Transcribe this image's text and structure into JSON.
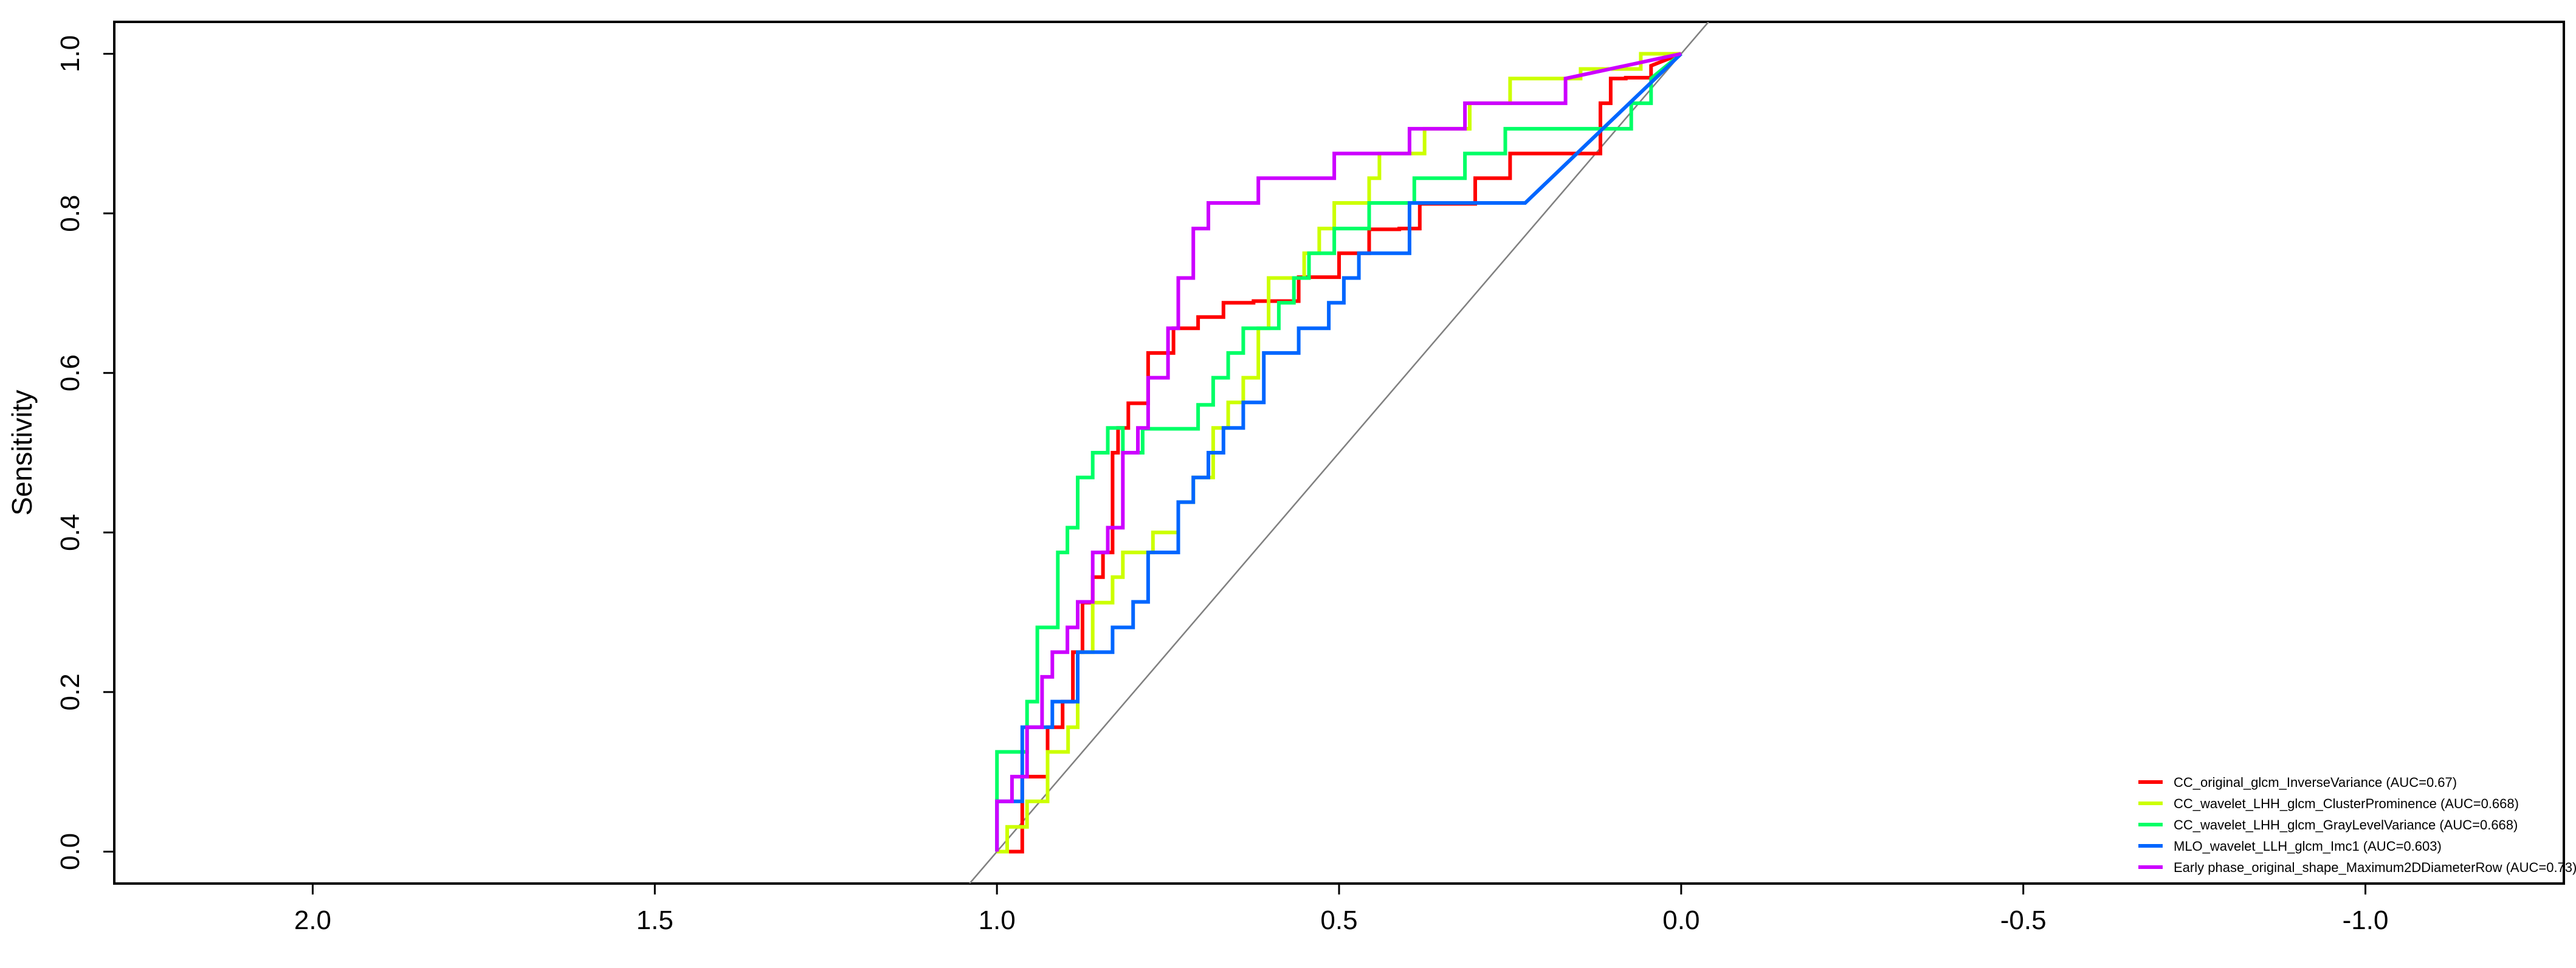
{
  "chart_data": {
    "type": "line",
    "title": "",
    "xlabel": "",
    "ylabel": "Sensitivity",
    "xlim": [
      2.29,
      -1.29
    ],
    "ylim": [
      -0.04,
      1.04
    ],
    "x_reversed": true,
    "x_ticks": [
      2.0,
      1.5,
      1.0,
      0.5,
      0.0,
      -0.5,
      -1.0
    ],
    "x_tick_labels": [
      "2.0",
      "1.5",
      "1.0",
      "0.5",
      "0.0",
      "-0.5",
      "-1.0"
    ],
    "y_ticks": [
      0.0,
      0.2,
      0.4,
      0.6,
      0.8,
      1.0
    ],
    "y_tick_labels": [
      "0.0",
      "0.2",
      "0.4",
      "0.6",
      "0.8",
      "1.0"
    ],
    "grid": false,
    "legend_position": "bottom-right",
    "reference_line": {
      "from": [
        1,
        0
      ],
      "to": [
        0,
        1
      ],
      "color": "#808080"
    },
    "series": [
      {
        "name": "CC_original_glcm_InverseVariance (AUC=0.67)",
        "color": "#ff0000",
        "x": [
          1.0,
          0.963,
          0.963,
          0.926,
          0.926,
          0.904,
          0.904,
          0.889,
          0.889,
          0.875,
          0.875,
          0.86,
          0.86,
          0.845,
          0.845,
          0.831,
          0.831,
          0.823,
          0.823,
          0.808,
          0.808,
          0.779,
          0.779,
          0.742,
          0.742,
          0.706,
          0.706,
          0.669,
          0.669,
          0.625,
          0.625,
          0.559,
          0.559,
          0.5,
          0.5,
          0.456,
          0.456,
          0.412,
          0.412,
          0.382,
          0.382,
          0.301,
          0.301,
          0.25,
          0.25,
          0.118,
          0.118,
          0.103,
          0.103,
          0.081,
          0.081,
          0.044,
          0.044,
          0.0
        ],
        "y": [
          0.0,
          0.0,
          0.094,
          0.094,
          0.156,
          0.156,
          0.188,
          0.188,
          0.25,
          0.25,
          0.312,
          0.312,
          0.344,
          0.344,
          0.375,
          0.375,
          0.5,
          0.5,
          0.531,
          0.531,
          0.562,
          0.562,
          0.625,
          0.625,
          0.656,
          0.656,
          0.67,
          0.67,
          0.688,
          0.688,
          0.69,
          0.69,
          0.72,
          0.72,
          0.75,
          0.75,
          0.78,
          0.78,
          0.781,
          0.781,
          0.812,
          0.812,
          0.844,
          0.844,
          0.875,
          0.875,
          0.938,
          0.938,
          0.969,
          0.969,
          0.97,
          0.97,
          0.985,
          1.0
        ]
      },
      {
        "name": "CC_wavelet_LHH_glcm_ClusterProminence (AUC=0.668)",
        "color": "#ccff00",
        "x": [
          1.0,
          0.985,
          0.985,
          0.956,
          0.956,
          0.926,
          0.926,
          0.896,
          0.896,
          0.882,
          0.882,
          0.86,
          0.86,
          0.831,
          0.831,
          0.816,
          0.816,
          0.772,
          0.772,
          0.735,
          0.735,
          0.713,
          0.713,
          0.684,
          0.684,
          0.662,
          0.662,
          0.64,
          0.64,
          0.618,
          0.618,
          0.603,
          0.603,
          0.551,
          0.551,
          0.529,
          0.529,
          0.507,
          0.507,
          0.456,
          0.456,
          0.441,
          0.441,
          0.375,
          0.375,
          0.309,
          0.309,
          0.25,
          0.25,
          0.147,
          0.147,
          0.059,
          0.059,
          0.0
        ],
        "y": [
          0.0,
          0.0,
          0.031,
          0.031,
          0.063,
          0.063,
          0.125,
          0.125,
          0.156,
          0.156,
          0.25,
          0.25,
          0.312,
          0.312,
          0.344,
          0.344,
          0.375,
          0.375,
          0.4,
          0.4,
          0.438,
          0.438,
          0.469,
          0.469,
          0.531,
          0.531,
          0.563,
          0.563,
          0.594,
          0.594,
          0.656,
          0.656,
          0.719,
          0.719,
          0.75,
          0.75,
          0.781,
          0.781,
          0.813,
          0.813,
          0.844,
          0.844,
          0.875,
          0.875,
          0.906,
          0.906,
          0.938,
          0.938,
          0.969,
          0.969,
          0.981,
          0.981,
          1.0,
          1.0
        ]
      },
      {
        "name": "CC_wavelet_LHH_glcm_GrayLevelVariance (AUC=0.668)",
        "color": "#00ff66",
        "x": [
          1.0,
          1.0,
          0.956,
          0.956,
          0.941,
          0.941,
          0.911,
          0.911,
          0.897,
          0.897,
          0.882,
          0.882,
          0.86,
          0.86,
          0.838,
          0.838,
          0.816,
          0.816,
          0.787,
          0.787,
          0.706,
          0.706,
          0.684,
          0.684,
          0.662,
          0.662,
          0.64,
          0.64,
          0.588,
          0.588,
          0.566,
          0.566,
          0.544,
          0.544,
          0.507,
          0.507,
          0.456,
          0.456,
          0.39,
          0.39,
          0.316,
          0.316,
          0.287,
          0.287,
          0.257,
          0.257,
          0.184,
          0.184,
          0.073,
          0.073,
          0.044,
          0.044,
          0.0
        ],
        "y": [
          0.0,
          0.125,
          0.125,
          0.188,
          0.188,
          0.281,
          0.281,
          0.375,
          0.375,
          0.406,
          0.406,
          0.469,
          0.469,
          0.5,
          0.5,
          0.531,
          0.531,
          0.5,
          0.5,
          0.53,
          0.53,
          0.56,
          0.56,
          0.594,
          0.594,
          0.625,
          0.625,
          0.656,
          0.656,
          0.688,
          0.688,
          0.719,
          0.719,
          0.75,
          0.75,
          0.781,
          0.781,
          0.813,
          0.813,
          0.844,
          0.844,
          0.875,
          0.875,
          0.875,
          0.875,
          0.906,
          0.906,
          0.906,
          0.906,
          0.938,
          0.938,
          0.969,
          1.0
        ]
      },
      {
        "name": "MLO_wavelet_LLH_glcm_Imc1 (AUC=0.603)",
        "color": "#0066ff",
        "x": [
          1.0,
          1.0,
          0.963,
          0.963,
          0.919,
          0.919,
          0.882,
          0.882,
          0.831,
          0.831,
          0.801,
          0.801,
          0.779,
          0.779,
          0.735,
          0.735,
          0.713,
          0.713,
          0.691,
          0.691,
          0.669,
          0.669,
          0.64,
          0.64,
          0.61,
          0.61,
          0.559,
          0.559,
          0.515,
          0.515,
          0.493,
          0.493,
          0.471,
          0.471,
          0.397,
          0.397,
          0.228,
          0.0
        ],
        "y": [
          0.0,
          0.063,
          0.063,
          0.156,
          0.156,
          0.188,
          0.188,
          0.25,
          0.25,
          0.281,
          0.281,
          0.313,
          0.313,
          0.375,
          0.375,
          0.438,
          0.438,
          0.469,
          0.469,
          0.5,
          0.5,
          0.531,
          0.531,
          0.563,
          0.563,
          0.625,
          0.625,
          0.656,
          0.656,
          0.688,
          0.688,
          0.719,
          0.719,
          0.75,
          0.75,
          0.813,
          0.813,
          1.0
        ]
      },
      {
        "name": "Early phase_original_shape_Maximum2DDiameterRow (AUC=0.73)",
        "color": "#cc00ff",
        "x": [
          1.0,
          1.0,
          0.978,
          0.978,
          0.956,
          0.956,
          0.934,
          0.934,
          0.919,
          0.919,
          0.897,
          0.897,
          0.882,
          0.882,
          0.86,
          0.86,
          0.838,
          0.838,
          0.816,
          0.816,
          0.794,
          0.794,
          0.779,
          0.779,
          0.75,
          0.75,
          0.735,
          0.735,
          0.713,
          0.713,
          0.691,
          0.691,
          0.669,
          0.669,
          0.618,
          0.618,
          0.507,
          0.507,
          0.397,
          0.397,
          0.316,
          0.316,
          0.169,
          0.169,
          0.0
        ],
        "y": [
          0.0,
          0.063,
          0.063,
          0.094,
          0.094,
          0.156,
          0.156,
          0.219,
          0.219,
          0.25,
          0.25,
          0.281,
          0.281,
          0.313,
          0.313,
          0.375,
          0.375,
          0.406,
          0.406,
          0.5,
          0.5,
          0.531,
          0.531,
          0.594,
          0.594,
          0.656,
          0.656,
          0.719,
          0.719,
          0.781,
          0.781,
          0.813,
          0.813,
          0.813,
          0.813,
          0.844,
          0.844,
          0.875,
          0.875,
          0.906,
          0.906,
          0.938,
          0.938,
          0.969,
          1.0
        ]
      }
    ]
  }
}
